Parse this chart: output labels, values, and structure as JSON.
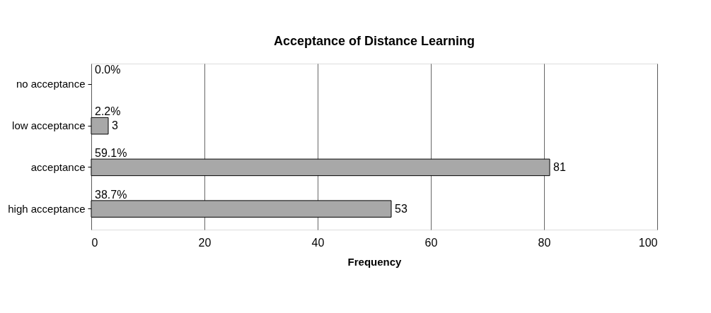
{
  "chart_data": {
    "type": "bar",
    "orientation": "horizontal",
    "title": "Acceptance of Distance Learning",
    "xlabel": "Frequency",
    "categories": [
      "no acceptance",
      "low acceptance",
      "acceptance",
      "high acceptance"
    ],
    "values": [
      0,
      3,
      81,
      53
    ],
    "color": "#a8a8a8",
    "value_labels": [
      null,
      "3",
      "81",
      "53"
    ],
    "annotations": [
      "0.0%",
      "2.2%",
      "59.1%",
      "38.7%"
    ],
    "xlim": [
      0,
      100
    ],
    "xticks": [
      0,
      20,
      40,
      60,
      80,
      100
    ],
    "grid": "x"
  }
}
